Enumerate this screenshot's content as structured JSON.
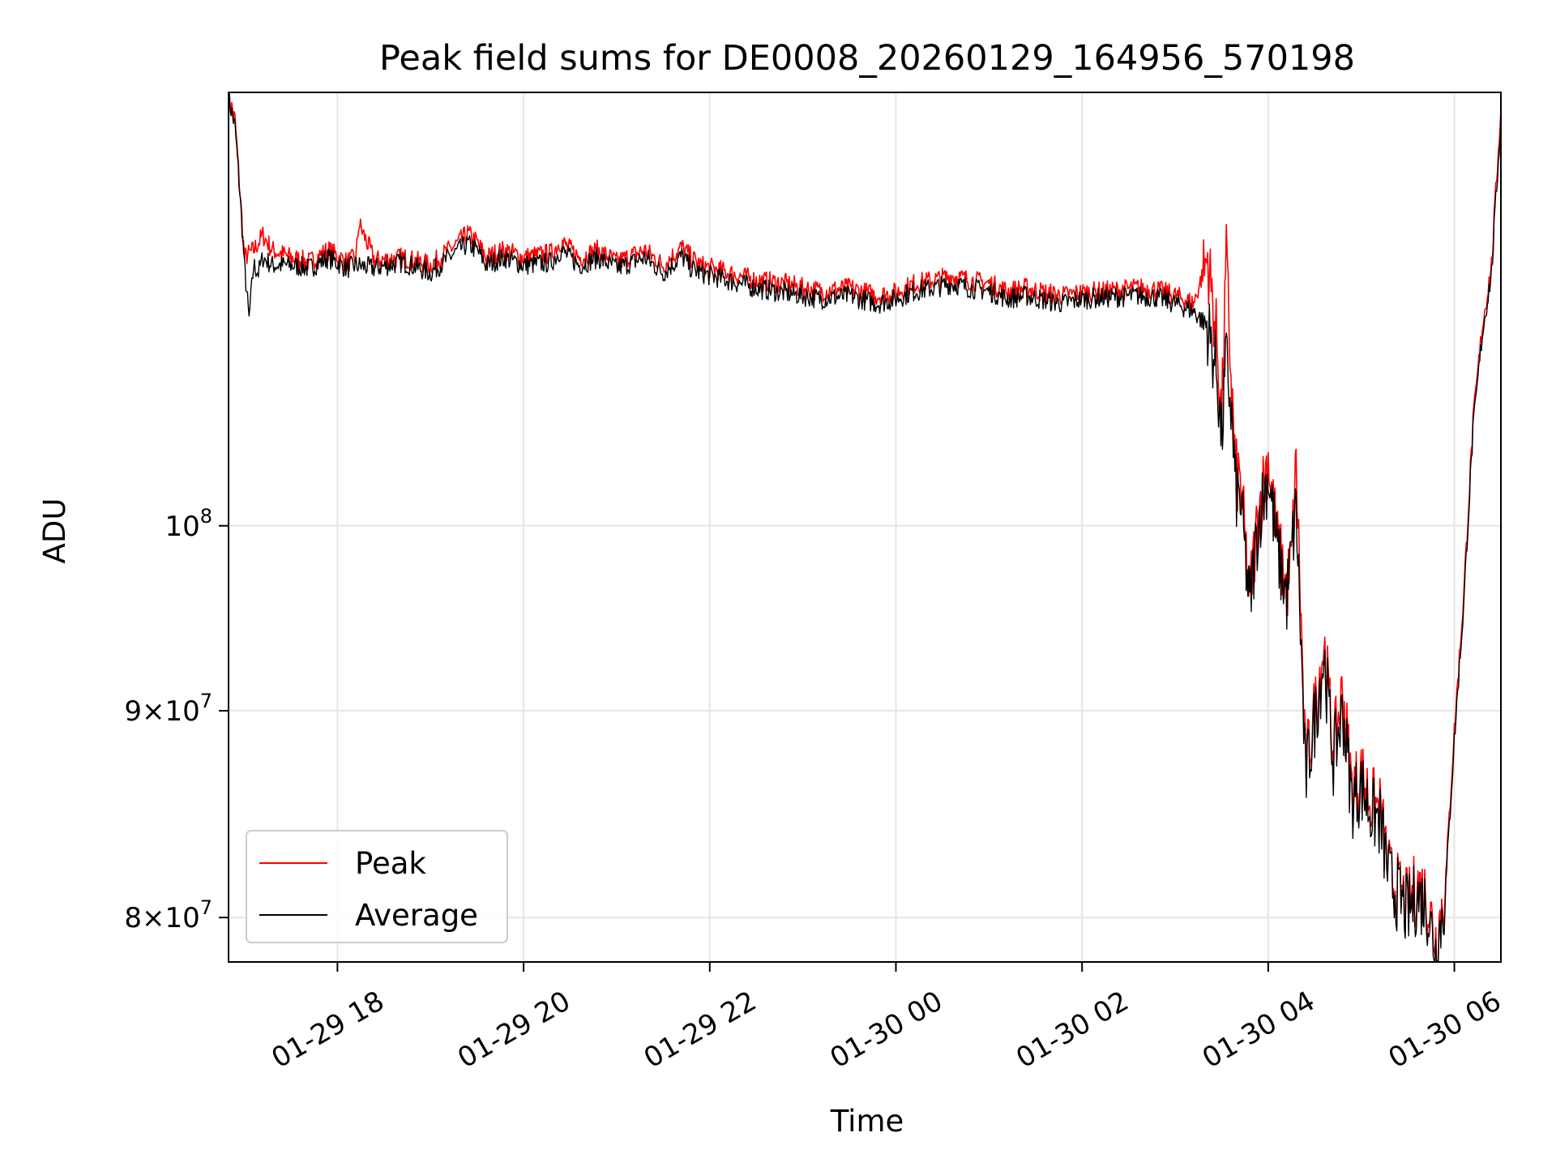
{
  "chart_data": {
    "type": "line",
    "title": "Peak field sums for DE0008_20260129_164956_570198",
    "xlabel": "Time",
    "ylabel": "ADU",
    "yscale": "log",
    "ylim": [
      78000000,
      128000000
    ],
    "xlim": [
      -1.17,
      12.5
    ],
    "x_unit": "hours since 2026-01-29 18:00",
    "grid": true,
    "legend_position": "lower-left",
    "x_ticks": [
      {
        "value": 0,
        "label": "01-29 18"
      },
      {
        "value": 2,
        "label": "01-29 20"
      },
      {
        "value": 4,
        "label": "01-29 22"
      },
      {
        "value": 6,
        "label": "01-30 00"
      },
      {
        "value": 8,
        "label": "01-30 02"
      },
      {
        "value": 10,
        "label": "01-30 04"
      },
      {
        "value": 12,
        "label": "01-30 06"
      }
    ],
    "y_ticks": [
      {
        "value": 80000000,
        "base": "8×10",
        "exp": "7"
      },
      {
        "value": 90000000,
        "base": "9×10",
        "exp": "7"
      },
      {
        "value": 100000000,
        "base": "10",
        "exp": "8"
      }
    ],
    "series": [
      {
        "name": "Peak",
        "color": "#ff0000",
        "x": [
          -1.17,
          -1.1,
          -1.0,
          -0.9,
          -0.8,
          -0.7,
          -0.5,
          -0.3,
          -0.1,
          0.1,
          0.2,
          0.23,
          0.4,
          0.7,
          1.0,
          1.3,
          1.4,
          1.5,
          1.6,
          1.7,
          1.8,
          2.0,
          2.3,
          2.4,
          2.6,
          2.8,
          3.0,
          3.3,
          3.5,
          3.7,
          3.8,
          3.9,
          4.2,
          4.5,
          4.8,
          5.0,
          5.2,
          5.5,
          5.8,
          6.0,
          6.2,
          6.4,
          6.6,
          6.8,
          7.0,
          7.2,
          7.4,
          7.6,
          7.8,
          8.0,
          8.3,
          8.6,
          8.8,
          9.0,
          9.2,
          9.35,
          9.45,
          9.5,
          9.55,
          9.6,
          9.65,
          9.7,
          9.8,
          9.9,
          10.0,
          10.1,
          10.2,
          10.25,
          10.3,
          10.4,
          10.5,
          10.6,
          10.7,
          10.8,
          10.9,
          11.0,
          11.1,
          11.2,
          11.3,
          11.4,
          11.5,
          11.6,
          11.7,
          11.8,
          11.9,
          12.0,
          12.1,
          12.2,
          12.3,
          12.4,
          12.5
        ],
        "values": [
          127800000,
          126000000,
          116500000,
          117000000,
          118000000,
          117000000,
          116500000,
          116200000,
          117000000,
          116200000,
          116500000,
          118800000,
          116300000,
          116500000,
          116000000,
          117500000,
          118100000,
          117500000,
          116500000,
          116800000,
          117000000,
          116500000,
          116800000,
          117600000,
          116500000,
          117000000,
          116200000,
          117000000,
          116000000,
          117200000,
          116500000,
          116000000,
          115500000,
          115000000,
          114800000,
          114500000,
          114300000,
          114500000,
          114000000,
          114200000,
          114800000,
          115000000,
          115300000,
          115000000,
          114800000,
          114300000,
          114500000,
          114200000,
          114000000,
          114200000,
          114300000,
          114500000,
          114400000,
          114000000,
          113500000,
          116500000,
          111000000,
          106000000,
          116500000,
          109000000,
          103000000,
          102500000,
          96000000,
          101000000,
          104000000,
          99000000,
          96500000,
          98000000,
          103500000,
          87000000,
          90000000,
          93500000,
          88000000,
          91000000,
          86000000,
          86800000,
          85500000,
          85000000,
          82000000,
          81200000,
          80500000,
          81500000,
          81000000,
          79000000,
          81200000,
          89000000,
          96000000,
          106000000,
          112000000,
          116000000,
          126800000
        ]
      },
      {
        "name": "Average",
        "color": "#000000",
        "x": [
          -1.17,
          -1.1,
          -1.05,
          -1.0,
          -0.95,
          -0.9,
          -0.85,
          -0.8,
          -0.7,
          -0.5,
          -0.3,
          -0.1,
          0.1,
          0.2,
          0.4,
          0.7,
          1.0,
          1.3,
          1.4,
          1.5,
          1.6,
          1.7,
          1.8,
          2.0,
          2.3,
          2.4,
          2.6,
          2.8,
          3.0,
          3.3,
          3.5,
          3.7,
          3.8,
          3.9,
          4.2,
          4.5,
          4.8,
          5.0,
          5.2,
          5.5,
          5.8,
          6.0,
          6.2,
          6.4,
          6.6,
          6.8,
          7.0,
          7.2,
          7.4,
          7.6,
          7.8,
          8.0,
          8.3,
          8.6,
          8.8,
          9.0,
          9.2,
          9.35,
          9.45,
          9.5,
          9.55,
          9.6,
          9.65,
          9.7,
          9.8,
          9.9,
          10.0,
          10.1,
          10.2,
          10.3,
          10.4,
          10.5,
          10.6,
          10.7,
          10.8,
          10.9,
          11.0,
          11.1,
          11.2,
          11.3,
          11.4,
          11.5,
          11.6,
          11.7,
          11.8,
          11.9,
          12.0,
          12.1,
          12.2,
          12.3,
          12.4,
          12.5
        ],
        "values": [
          127500000,
          125500000,
          121000000,
          116000000,
          112500000,
          116000000,
          115500000,
          116500000,
          116000000,
          116000000,
          115800000,
          116500000,
          115800000,
          116000000,
          115800000,
          116200000,
          115500000,
          117000000,
          117400000,
          117000000,
          116000000,
          116300000,
          116500000,
          116000000,
          116200000,
          117000000,
          116000000,
          116500000,
          115800000,
          116500000,
          115500000,
          116600000,
          115800000,
          115500000,
          115000000,
          114500000,
          114200000,
          114000000,
          113800000,
          114000000,
          113500000,
          113800000,
          114300000,
          114500000,
          114800000,
          114500000,
          114300000,
          113800000,
          114000000,
          113700000,
          113500000,
          113800000,
          113900000,
          114000000,
          113900000,
          113500000,
          113000000,
          112000000,
          109000000,
          105000000,
          110000000,
          107000000,
          102000000,
          101500000,
          95500000,
          100500000,
          103000000,
          98500000,
          96000000,
          101000000,
          86500000,
          89500000,
          92800000,
          87500000,
          90000000,
          85500000,
          86200000,
          85000000,
          84500000,
          81800000,
          81000000,
          80200000,
          81000000,
          80600000,
          78500000,
          80800000,
          88500000,
          95500000,
          105500000,
          111500000,
          115500000,
          126000000
        ]
      }
    ]
  }
}
